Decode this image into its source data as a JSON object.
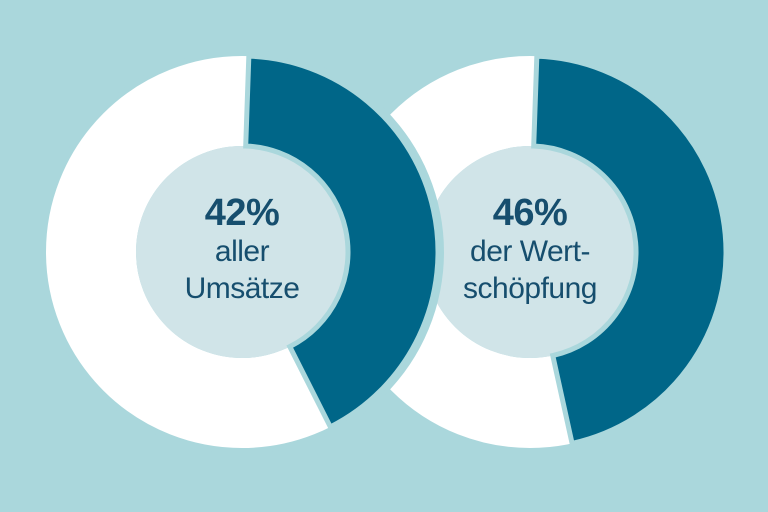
{
  "colors": {
    "background": "#aad7dc",
    "segment": "#006688",
    "remainder": "#ffffff",
    "inner_circle": "#d0e4e8",
    "label_text": "#164e6e"
  },
  "chart_data": [
    {
      "type": "pie",
      "subtype": "donut",
      "value_pct": 42,
      "remainder_pct": 58,
      "center_label_lines": [
        "42%",
        "aller",
        "Umsätze"
      ],
      "segment_color": "#006688",
      "remainder_color": "#ffffff",
      "rotation_deg": 2,
      "legend": "none",
      "grid": "off"
    },
    {
      "type": "pie",
      "subtype": "donut",
      "value_pct": 46,
      "remainder_pct": 54,
      "center_label_lines": [
        "46%",
        "der Wert-",
        "schöpfung"
      ],
      "segment_color": "#006688",
      "remainder_color": "#ffffff",
      "rotation_deg": 2,
      "legend": "none",
      "grid": "off"
    }
  ]
}
